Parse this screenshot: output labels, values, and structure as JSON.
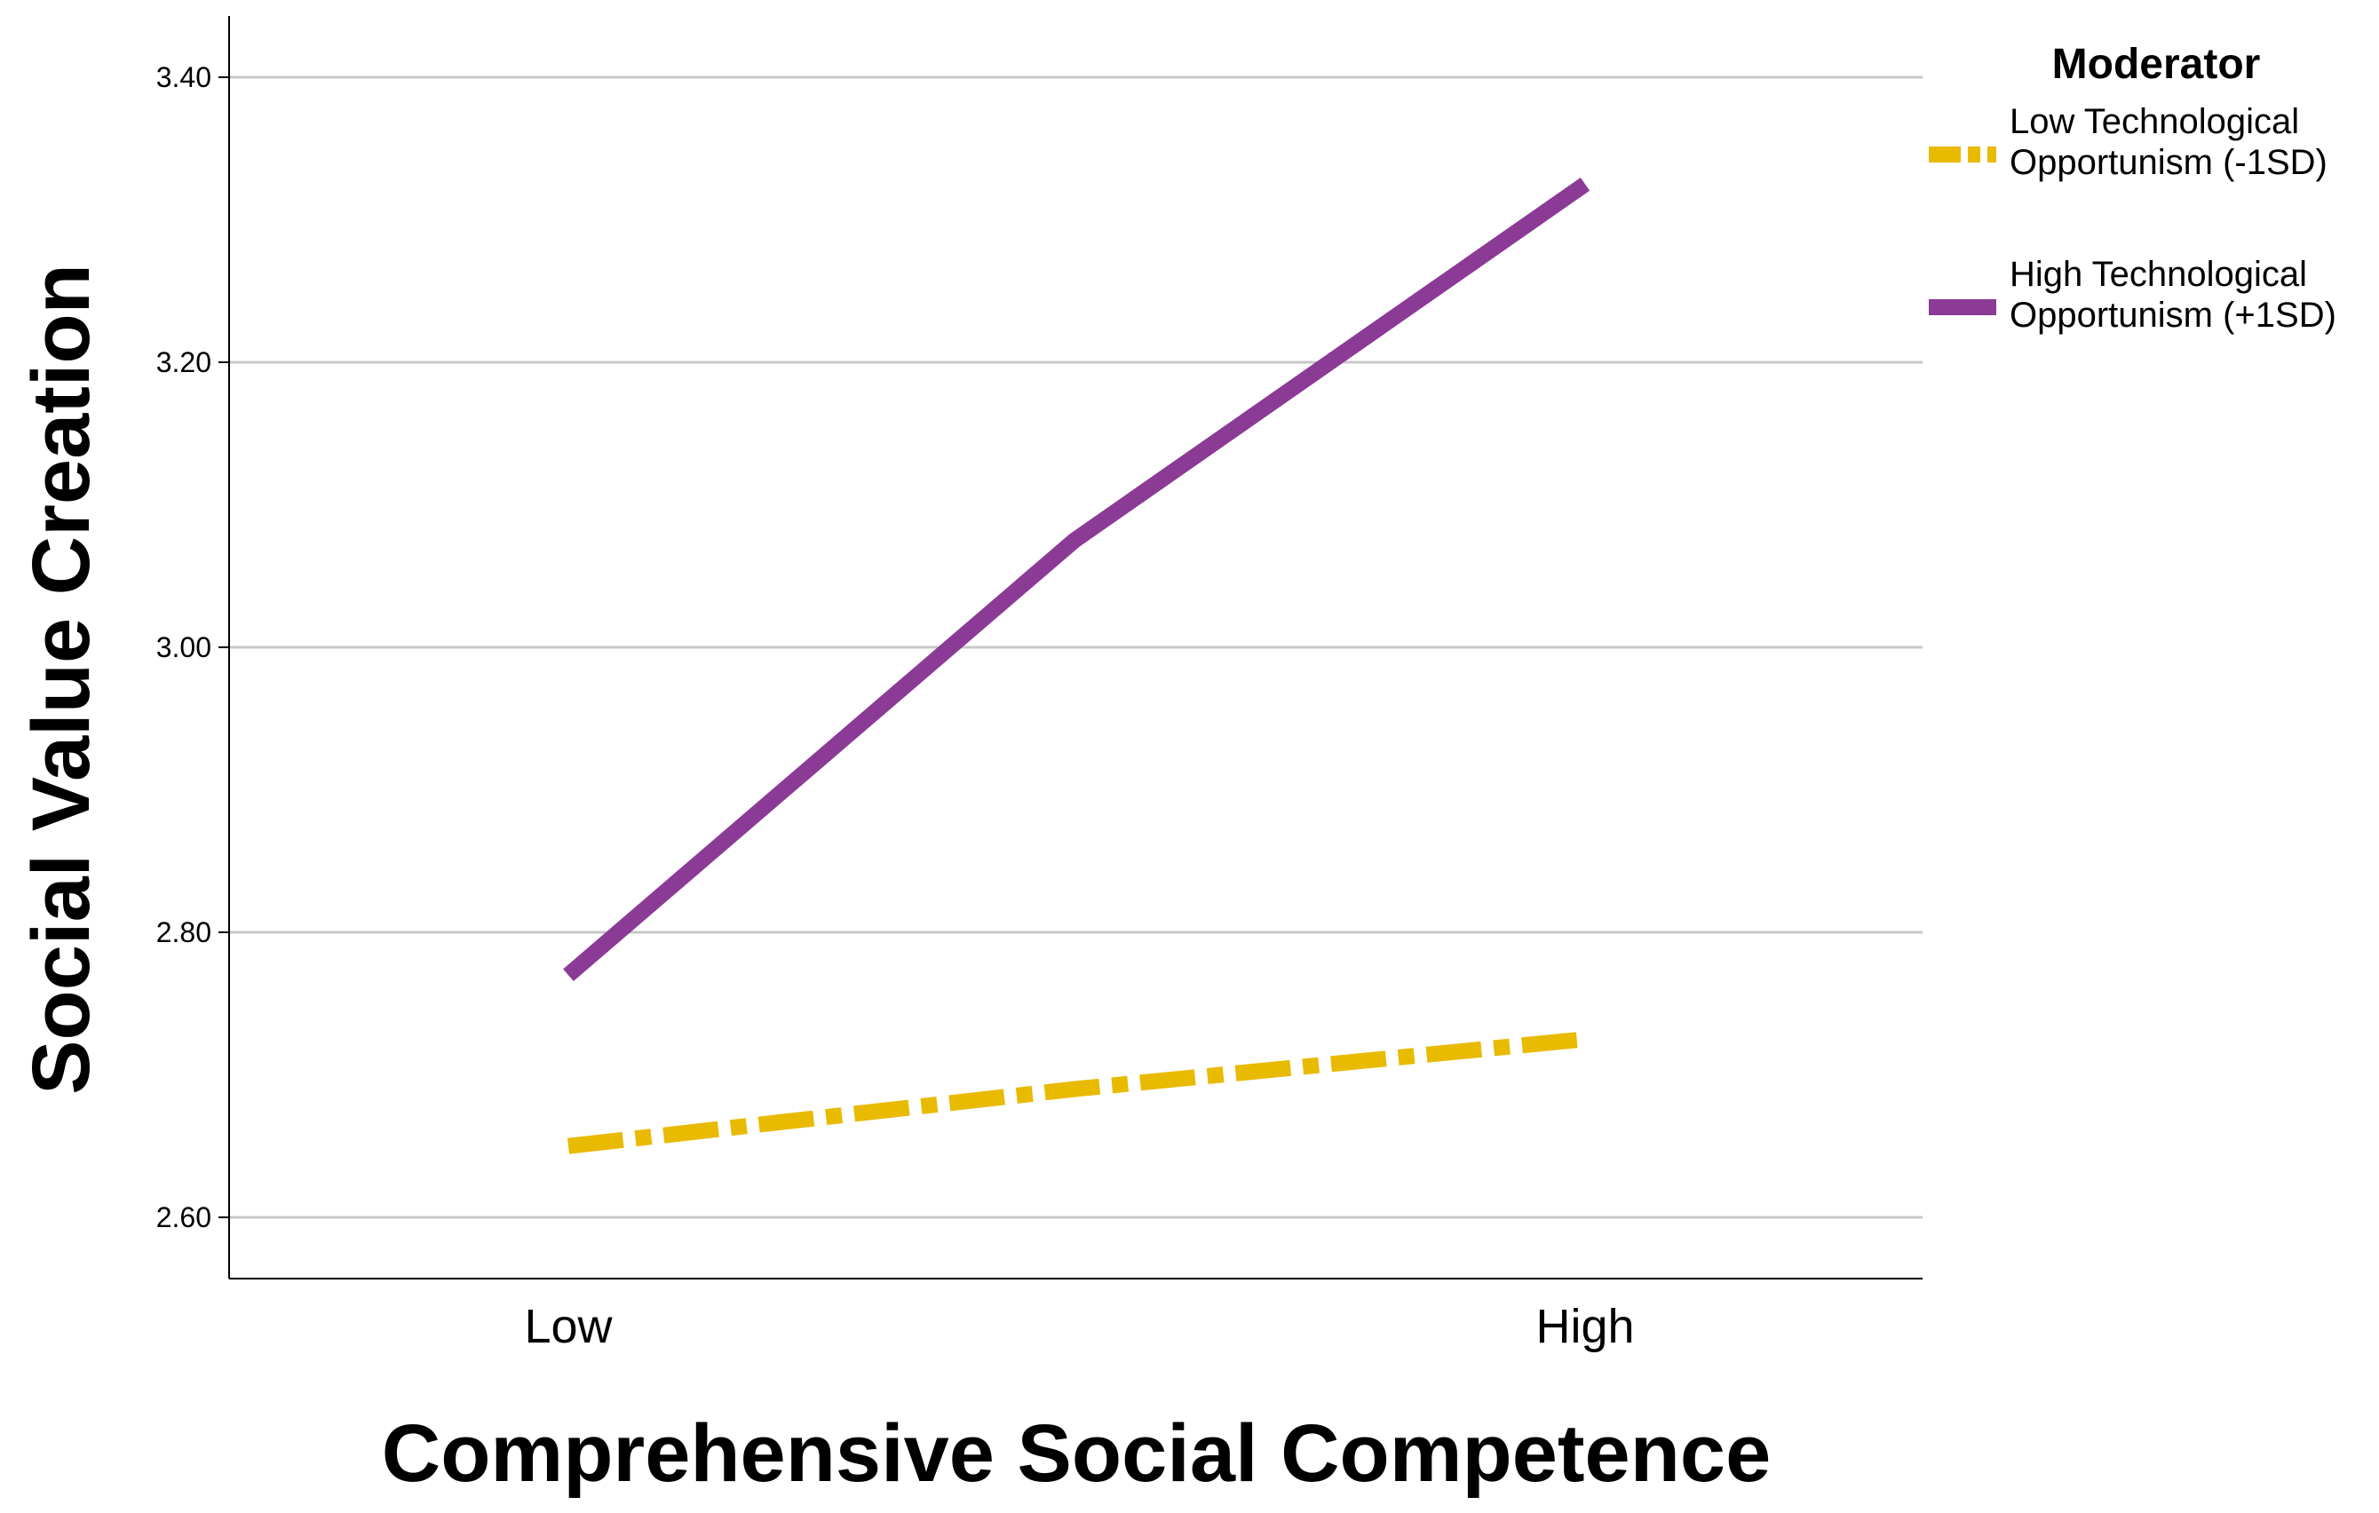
{
  "chart_data": {
    "type": "line",
    "xlabel": "Comprehensive Social Competence",
    "ylabel": "Social Value Creation",
    "categories": [
      "Low",
      "High"
    ],
    "ylim": [
      2.56,
      3.44
    ],
    "yticks": [
      "2.60",
      "2.80",
      "3.00",
      "3.20",
      "3.40"
    ],
    "grid": true,
    "legend": {
      "title": "Moderator",
      "placement": "top-right"
    },
    "series": [
      {
        "name_lines": [
          "Low Technological",
          "Opportunism (-1SD)"
        ],
        "x": [
          "Low",
          "Mid",
          "High"
        ],
        "values": [
          2.65,
          2.69,
          2.725
        ],
        "color": "#E8BA00",
        "style": "dash-dot"
      },
      {
        "name_lines": [
          "High Technological",
          "Opportunism (+1SD)"
        ],
        "x": [
          "Low",
          "Mid",
          "High"
        ],
        "values": [
          2.77,
          3.075,
          3.325
        ],
        "color": "#8B3A96",
        "style": "solid"
      }
    ]
  }
}
